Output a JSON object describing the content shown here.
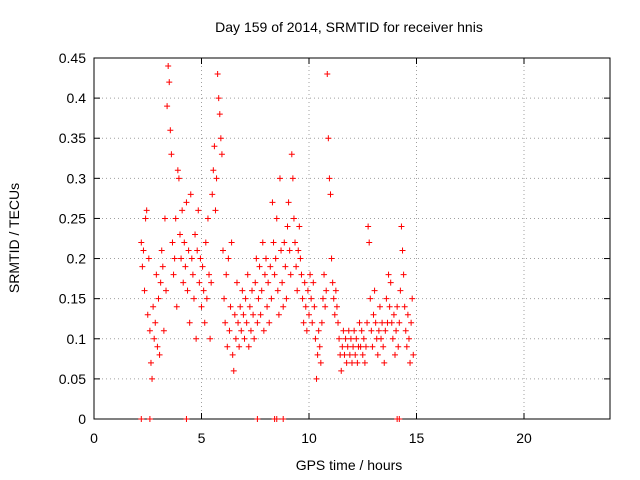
{
  "chart_data": {
    "type": "scatter",
    "title": "Day 159 of 2014, SRMTID for receiver hnis",
    "xlabel": "GPS time / hours",
    "ylabel": "SRMTID / TECUs",
    "xlim": [
      0,
      24
    ],
    "ylim": [
      0,
      0.45
    ],
    "xticks": [
      0,
      5,
      10,
      15,
      20
    ],
    "yticks": [
      0,
      0.05,
      0.1,
      0.15,
      0.2,
      0.25,
      0.3,
      0.35,
      0.4,
      0.45
    ],
    "xtick_labels": [
      "0",
      "5",
      "10",
      "15",
      "20"
    ],
    "ytick_labels": [
      "0",
      "0.05",
      "0.1",
      "0.15",
      "0.2",
      "0.25",
      "0.3",
      "0.35",
      "0.4",
      "0.45"
    ],
    "grid": true,
    "marker": "+",
    "color": "#ff0000",
    "series": [
      {
        "points": [
          [
            2.2,
            0.22
          ],
          [
            2.25,
            0.19
          ],
          [
            2.3,
            0.21
          ],
          [
            2.35,
            0.16
          ],
          [
            2.4,
            0.25
          ],
          [
            2.45,
            0.26
          ],
          [
            2.5,
            0.13
          ],
          [
            2.55,
            0.2
          ],
          [
            2.6,
            0.11
          ],
          [
            2.65,
            0.07
          ],
          [
            2.7,
            0.05
          ],
          [
            2.75,
            0.14
          ],
          [
            2.8,
            0.1
          ],
          [
            2.85,
            0.12
          ],
          [
            2.9,
            0.18
          ],
          [
            2.95,
            0.09
          ],
          [
            3.0,
            0.15
          ],
          [
            3.05,
            0.08
          ],
          [
            3.1,
            0.17
          ],
          [
            3.15,
            0.21
          ],
          [
            3.2,
            0.19
          ],
          [
            3.25,
            0.11
          ],
          [
            3.3,
            0.25
          ],
          [
            3.35,
            0.16
          ],
          [
            3.4,
            0.39
          ],
          [
            3.45,
            0.44
          ],
          [
            3.5,
            0.42
          ],
          [
            3.55,
            0.36
          ],
          [
            3.6,
            0.33
          ],
          [
            3.65,
            0.22
          ],
          [
            3.7,
            0.18
          ],
          [
            3.75,
            0.2
          ],
          [
            3.8,
            0.25
          ],
          [
            3.85,
            0.14
          ],
          [
            3.9,
            0.31
          ],
          [
            3.95,
            0.3
          ],
          [
            4.0,
            0.23
          ],
          [
            4.05,
            0.2
          ],
          [
            4.1,
            0.26
          ],
          [
            4.15,
            0.17
          ],
          [
            4.2,
            0.22
          ],
          [
            4.25,
            0.19
          ],
          [
            4.3,
            0.27
          ],
          [
            4.35,
            0.16
          ],
          [
            4.4,
            0.21
          ],
          [
            4.45,
            0.12
          ],
          [
            4.5,
            0.28
          ],
          [
            4.55,
            0.2
          ],
          [
            4.6,
            0.18
          ],
          [
            4.65,
            0.15
          ],
          [
            4.7,
            0.23
          ],
          [
            4.75,
            0.1
          ],
          [
            4.8,
            0.21
          ],
          [
            4.85,
            0.26
          ],
          [
            4.9,
            0.17
          ],
          [
            4.95,
            0.2
          ],
          [
            5.0,
            0.14
          ],
          [
            5.05,
            0.19
          ],
          [
            5.1,
            0.16
          ],
          [
            5.15,
            0.12
          ],
          [
            5.2,
            0.22
          ],
          [
            5.25,
            0.15
          ],
          [
            5.3,
            0.25
          ],
          [
            5.35,
            0.18
          ],
          [
            5.4,
            0.1
          ],
          [
            5.45,
            0.17
          ],
          [
            5.5,
            0.28
          ],
          [
            5.55,
            0.31
          ],
          [
            5.6,
            0.34
          ],
          [
            5.65,
            0.26
          ],
          [
            5.7,
            0.3
          ],
          [
            5.75,
            0.43
          ],
          [
            5.8,
            0.4
          ],
          [
            5.85,
            0.38
          ],
          [
            5.9,
            0.35
          ],
          [
            5.95,
            0.33
          ],
          [
            6.0,
            0.21
          ],
          [
            6.05,
            0.15
          ],
          [
            6.1,
            0.12
          ],
          [
            6.15,
            0.18
          ],
          [
            6.2,
            0.09
          ],
          [
            6.25,
            0.2
          ],
          [
            6.3,
            0.11
          ],
          [
            6.35,
            0.14
          ],
          [
            6.4,
            0.22
          ],
          [
            6.45,
            0.08
          ],
          [
            6.5,
            0.06
          ],
          [
            6.55,
            0.13
          ],
          [
            6.6,
            0.1
          ],
          [
            6.65,
            0.17
          ],
          [
            6.7,
            0.12
          ],
          [
            6.75,
            0.09
          ],
          [
            6.8,
            0.14
          ],
          [
            6.85,
            0.11
          ],
          [
            6.9,
            0.16
          ],
          [
            6.95,
            0.13
          ],
          [
            7.0,
            0.1
          ],
          [
            7.05,
            0.15
          ],
          [
            7.1,
            0.12
          ],
          [
            7.15,
            0.18
          ],
          [
            7.2,
            0.09
          ],
          [
            7.25,
            0.14
          ],
          [
            7.3,
            0.11
          ],
          [
            7.35,
            0.16
          ],
          [
            7.4,
            0.13
          ],
          [
            7.45,
            0.1
          ],
          [
            7.5,
            0.17
          ],
          [
            7.55,
            0.2
          ],
          [
            7.6,
            0.12
          ],
          [
            7.65,
            0.15
          ],
          [
            7.7,
            0.19
          ],
          [
            7.75,
            0.13
          ],
          [
            7.8,
            0.16
          ],
          [
            7.85,
            0.22
          ],
          [
            7.9,
            0.11
          ],
          [
            7.95,
            0.18
          ],
          [
            8.0,
            0.2
          ],
          [
            8.05,
            0.14
          ],
          [
            8.1,
            0.17
          ],
          [
            8.15,
            0.12
          ],
          [
            8.2,
            0.19
          ],
          [
            8.25,
            0.15
          ],
          [
            8.3,
            0.27
          ],
          [
            8.35,
            0.22
          ],
          [
            8.4,
            0.18
          ],
          [
            8.45,
            0.2
          ],
          [
            8.5,
            0.25
          ],
          [
            8.55,
            0.16
          ],
          [
            8.6,
            0.13
          ],
          [
            8.65,
            0.3
          ],
          [
            8.7,
            0.21
          ],
          [
            8.75,
            0.17
          ],
          [
            8.8,
            0.14
          ],
          [
            8.85,
            0.22
          ],
          [
            8.9,
            0.19
          ],
          [
            8.95,
            0.15
          ],
          [
            9.0,
            0.24
          ],
          [
            9.05,
            0.27
          ],
          [
            9.1,
            0.21
          ],
          [
            9.15,
            0.18
          ],
          [
            9.2,
            0.33
          ],
          [
            9.25,
            0.3
          ],
          [
            9.3,
            0.25
          ],
          [
            9.35,
            0.22
          ],
          [
            9.4,
            0.19
          ],
          [
            9.45,
            0.16
          ],
          [
            9.5,
            0.21
          ],
          [
            9.55,
            0.24
          ],
          [
            9.6,
            0.2
          ],
          [
            9.65,
            0.18
          ],
          [
            9.7,
            0.15
          ],
          [
            9.75,
            0.12
          ],
          [
            9.8,
            0.17
          ],
          [
            9.85,
            0.14
          ],
          [
            9.9,
            0.11
          ],
          [
            9.95,
            0.16
          ],
          [
            10.0,
            0.13
          ],
          [
            10.05,
            0.18
          ],
          [
            10.1,
            0.15
          ],
          [
            10.15,
            0.12
          ],
          [
            10.2,
            0.17
          ],
          [
            10.25,
            0.14
          ],
          [
            10.3,
            0.1
          ],
          [
            10.35,
            0.05
          ],
          [
            10.4,
            0.08
          ],
          [
            10.45,
            0.11
          ],
          [
            10.5,
            0.09
          ],
          [
            10.55,
            0.07
          ],
          [
            10.6,
            0.12
          ],
          [
            10.65,
            0.15
          ],
          [
            10.7,
            0.18
          ],
          [
            10.75,
            0.14
          ],
          [
            10.8,
            0.16
          ],
          [
            10.85,
            0.43
          ],
          [
            10.9,
            0.35
          ],
          [
            10.95,
            0.3
          ],
          [
            11.0,
            0.28
          ],
          [
            11.05,
            0.2
          ],
          [
            11.1,
            0.17
          ],
          [
            11.15,
            0.15
          ],
          [
            11.2,
            0.13
          ],
          [
            11.25,
            0.16
          ],
          [
            11.3,
            0.14
          ],
          [
            11.35,
            0.12
          ],
          [
            11.4,
            0.1
          ],
          [
            11.45,
            0.08
          ],
          [
            11.5,
            0.06
          ],
          [
            11.55,
            0.09
          ],
          [
            11.6,
            0.11
          ],
          [
            11.65,
            0.08
          ],
          [
            11.7,
            0.1
          ],
          [
            11.75,
            0.07
          ],
          [
            11.8,
            0.09
          ],
          [
            11.85,
            0.11
          ],
          [
            11.9,
            0.08
          ],
          [
            11.95,
            0.1
          ],
          [
            12.0,
            0.07
          ],
          [
            12.05,
            0.09
          ],
          [
            12.1,
            0.11
          ],
          [
            12.15,
            0.08
          ],
          [
            12.2,
            0.1
          ],
          [
            12.25,
            0.07
          ],
          [
            12.3,
            0.09
          ],
          [
            12.35,
            0.12
          ],
          [
            12.4,
            0.09
          ],
          [
            12.45,
            0.11
          ],
          [
            12.5,
            0.08
          ],
          [
            12.55,
            0.1
          ],
          [
            12.6,
            0.07
          ],
          [
            12.65,
            0.09
          ],
          [
            12.7,
            0.12
          ],
          [
            12.75,
            0.24
          ],
          [
            12.8,
            0.22
          ],
          [
            12.85,
            0.15
          ],
          [
            12.9,
            0.11
          ],
          [
            12.95,
            0.09
          ],
          [
            13.0,
            0.13
          ],
          [
            13.05,
            0.16
          ],
          [
            13.1,
            0.12
          ],
          [
            13.15,
            0.1
          ],
          [
            13.2,
            0.08
          ],
          [
            13.25,
            0.11
          ],
          [
            13.3,
            0.14
          ],
          [
            13.35,
            0.1
          ],
          [
            13.4,
            0.12
          ],
          [
            13.45,
            0.09
          ],
          [
            13.5,
            0.07
          ],
          [
            13.55,
            0.11
          ],
          [
            13.6,
            0.15
          ],
          [
            13.65,
            0.12
          ],
          [
            13.7,
            0.18
          ],
          [
            13.75,
            0.14
          ],
          [
            13.8,
            0.17
          ],
          [
            13.85,
            0.12
          ],
          [
            13.9,
            0.1
          ],
          [
            13.95,
            0.13
          ],
          [
            14.0,
            0.08
          ],
          [
            14.05,
            0.11
          ],
          [
            14.1,
            0.14
          ],
          [
            14.15,
            0.09
          ],
          [
            14.2,
            0.12
          ],
          [
            14.25,
            0.16
          ],
          [
            14.3,
            0.24
          ],
          [
            14.35,
            0.21
          ],
          [
            14.4,
            0.18
          ],
          [
            14.45,
            0.14
          ],
          [
            14.5,
            0.11
          ],
          [
            14.55,
            0.09
          ],
          [
            14.6,
            0.13
          ],
          [
            14.65,
            0.1
          ],
          [
            14.7,
            0.07
          ],
          [
            14.75,
            0.12
          ],
          [
            14.8,
            0.15
          ],
          [
            14.85,
            0.08
          ]
        ]
      }
    ],
    "zero_points_x": [
      2.2,
      2.6,
      4.3,
      7.6,
      8.4,
      8.5,
      8.8,
      14.1,
      14.2
    ]
  }
}
